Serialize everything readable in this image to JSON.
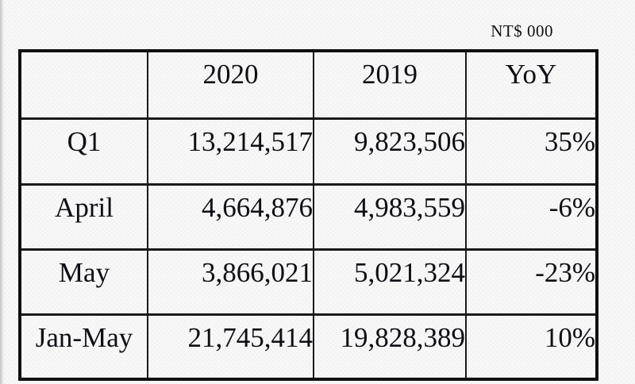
{
  "chart_data": {
    "type": "table",
    "unit_note": "NT$ 000",
    "columns": [
      "",
      "2020",
      "2019",
      "YoY"
    ],
    "rows": [
      {
        "label": "Q1",
        "values": [
          "13,214,517",
          "9,823,506",
          "35%"
        ]
      },
      {
        "label": "April",
        "values": [
          "4,664,876",
          "4,983,559",
          "-6%"
        ]
      },
      {
        "label": "May",
        "values": [
          "3,866,021",
          "5,021,324",
          "-23%"
        ]
      },
      {
        "label": "Jan-May",
        "values": [
          "21,745,414",
          "19,828,389",
          "10%"
        ]
      }
    ],
    "layout_hints": {
      "header_alignment": "center",
      "label_alignment": "center",
      "value_alignment": "right",
      "unit_note_position": "top-right"
    },
    "colors": {
      "text": "#0e0e14",
      "border": "#1a1a1a",
      "background": "#f4f4f4"
    }
  }
}
